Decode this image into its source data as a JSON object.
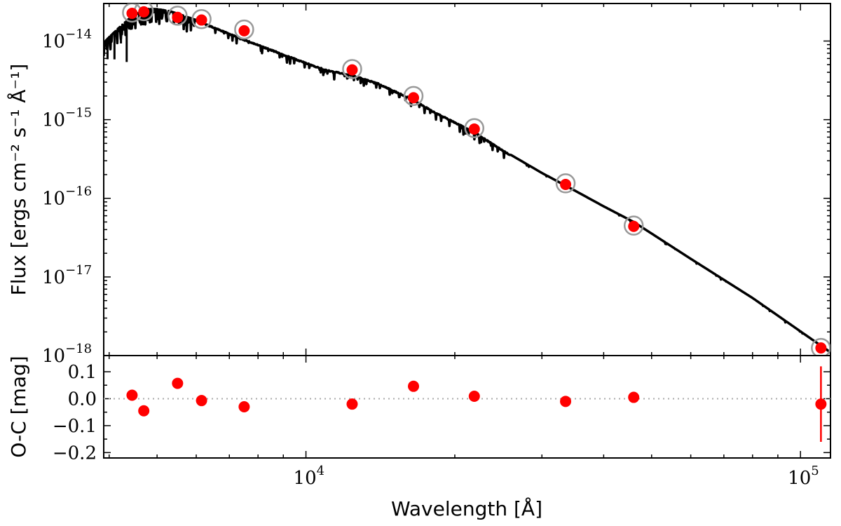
{
  "chart_data": [
    {
      "panel": "sed",
      "type": "line",
      "xscale": "log",
      "yscale": "log",
      "xlim": [
        3900,
        115000
      ],
      "ylim": [
        1e-18,
        3e-14
      ],
      "ylabel": "Flux [ergs cm⁻² s⁻¹ Å⁻¹]",
      "y_ticks": [
        {
          "value": 1e-14,
          "mantissa": "10",
          "exp": "−14"
        },
        {
          "value": 1e-15,
          "mantissa": "10",
          "exp": "−15"
        },
        {
          "value": 1e-16,
          "mantissa": "10",
          "exp": "−16"
        },
        {
          "value": 1e-17,
          "mantissa": "10",
          "exp": "−17"
        },
        {
          "value": 1e-18,
          "mantissa": "10",
          "exp": "−18"
        }
      ],
      "model_line": {
        "name": "model spectrum",
        "color": "#000000",
        "x": [
          3900,
          4000,
          4200,
          4400,
          4600,
          4800,
          5000,
          5300,
          5600,
          6000,
          6500,
          7000,
          7500,
          8000,
          9000,
          10000,
          11000,
          12400,
          14000,
          16500,
          18000,
          21900,
          25000,
          30000,
          35000,
          40000,
          46000,
          60000,
          80000,
          115000
        ],
        "y": [
          9.5e-15,
          1.12e-14,
          1.5e-14,
          1.95e-14,
          2.3e-14,
          2.55e-14,
          2.55e-14,
          2.4e-14,
          2.15e-14,
          1.85e-14,
          1.5e-14,
          1.25e-14,
          1.05e-14,
          9e-15,
          6.8e-15,
          5.3e-15,
          4.3e-15,
          3.7e-15,
          2.9e-15,
          1.8e-15,
          1.3e-15,
          7e-16,
          4.1e-16,
          2.1e-16,
          1.25e-16,
          7.9e-17,
          5e-17,
          1.7e-17,
          5.4e-18,
          1.1e-18
        ]
      },
      "model_points": {
        "name": "synthetic photometry",
        "color": "#999999",
        "x": [
          4450,
          4700,
          5500,
          6150,
          7500,
          12400,
          16500,
          21900,
          33500,
          46000,
          110000
        ],
        "y": [
          2.3e-14,
          2.4e-14,
          2.1e-14,
          1.9e-14,
          1.4e-14,
          4.4e-15,
          2e-15,
          7.8e-16,
          1.55e-16,
          4.5e-17,
          1.25e-18
        ]
      },
      "observed_points": {
        "name": "observed photometry",
        "color": "#ff0000",
        "x": [
          4450,
          4700,
          5500,
          6150,
          7500,
          12400,
          16500,
          21900,
          33500,
          46000,
          110000
        ],
        "y": [
          2.25e-14,
          2.35e-14,
          2e-14,
          1.85e-14,
          1.35e-14,
          4.3e-15,
          1.9e-15,
          7.6e-16,
          1.5e-16,
          4.4e-17,
          1.25e-18
        ]
      }
    },
    {
      "panel": "residuals",
      "type": "scatter",
      "xscale": "log",
      "xlim": [
        3900,
        115000
      ],
      "ylim": [
        -0.22,
        0.16
      ],
      "ylabel": "O-C [mag]",
      "xlabel": "Wavelength [Å]",
      "x_ticks": [
        {
          "value": 10000,
          "mantissa": "10",
          "exp": "4"
        },
        {
          "value": 100000,
          "mantissa": "10",
          "exp": "5"
        }
      ],
      "y_ticks": [
        {
          "value": 0.1,
          "label": "0.1"
        },
        {
          "value": 0.0,
          "label": "0.0"
        },
        {
          "value": -0.1,
          "label": "−0.1"
        },
        {
          "value": -0.2,
          "label": "−0.2"
        }
      ],
      "zero_line": 0.0,
      "zero_line_color": "#aaaaaa",
      "series": {
        "name": "residuals",
        "color": "#ff0000",
        "x": [
          4450,
          4700,
          5500,
          6150,
          7500,
          12400,
          16500,
          21900,
          33500,
          46000,
          110000
        ],
        "y": [
          0.013,
          -0.045,
          0.057,
          -0.007,
          -0.03,
          -0.02,
          0.046,
          0.009,
          -0.01,
          0.005,
          -0.02
        ],
        "yerr": [
          0,
          0,
          0,
          0,
          0,
          0,
          0,
          0,
          0.01,
          0,
          0.14
        ]
      }
    }
  ]
}
